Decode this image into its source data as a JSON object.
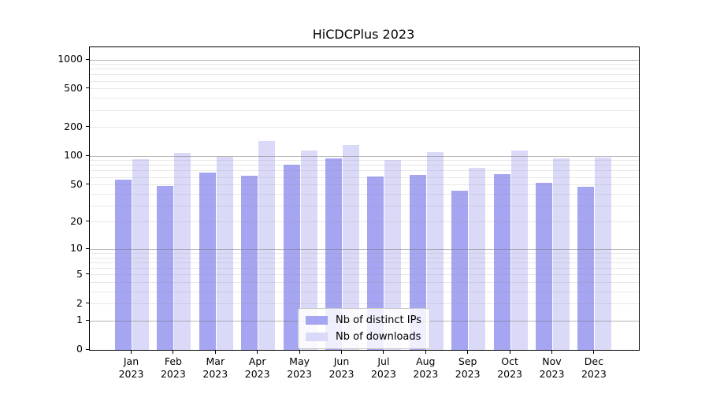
{
  "title": "HiCDCPlus 2023",
  "legend": {
    "items": [
      {
        "label": "Nb of distinct IPs",
        "color": "#a5a5f2"
      },
      {
        "label": "Nb of downloads",
        "color": "#dadaf8"
      }
    ]
  },
  "colors": {
    "bar_distinct_ips": "#a5a5f2",
    "bar_downloads": "#dadaf8",
    "grid_major": "#a5a5a5",
    "grid_minor": "#e6e6e6",
    "axis": "#000000"
  },
  "chart_data": {
    "type": "bar",
    "title": "HiCDCPlus 2023",
    "categories": [
      "Jan 2023",
      "Feb 2023",
      "Mar 2023",
      "Apr 2023",
      "May 2023",
      "Jun 2023",
      "Jul 2023",
      "Aug 2023",
      "Sep 2023",
      "Oct 2023",
      "Nov 2023",
      "Dec 2023"
    ],
    "month_labels": [
      {
        "month": "Jan",
        "year": "2023"
      },
      {
        "month": "Feb",
        "year": "2023"
      },
      {
        "month": "Mar",
        "year": "2023"
      },
      {
        "month": "Apr",
        "year": "2023"
      },
      {
        "month": "May",
        "year": "2023"
      },
      {
        "month": "Jun",
        "year": "2023"
      },
      {
        "month": "Jul",
        "year": "2023"
      },
      {
        "month": "Aug",
        "year": "2023"
      },
      {
        "month": "Sep",
        "year": "2023"
      },
      {
        "month": "Oct",
        "year": "2023"
      },
      {
        "month": "Nov",
        "year": "2023"
      },
      {
        "month": "Dec",
        "year": "2023"
      }
    ],
    "series": [
      {
        "name": "Nb of distinct IPs",
        "color": "#a5a5f2",
        "values": [
          57,
          49,
          68,
          62,
          82,
          94,
          61,
          64,
          43,
          65,
          53,
          48
        ]
      },
      {
        "name": "Nb of downloads",
        "color": "#dadaf8",
        "values": [
          93,
          108,
          98,
          145,
          115,
          130,
          92,
          110,
          76,
          115,
          94,
          96
        ]
      }
    ],
    "xlabel": "",
    "ylabel": "",
    "yscale": "log(value+1)",
    "yticks": [
      1000,
      500,
      200,
      100,
      50,
      20,
      10,
      5,
      2,
      1,
      0
    ],
    "ylim": [
      0,
      1350
    ],
    "grid": "major and minor horizontal, log decades",
    "legend_position": "lower center"
  }
}
